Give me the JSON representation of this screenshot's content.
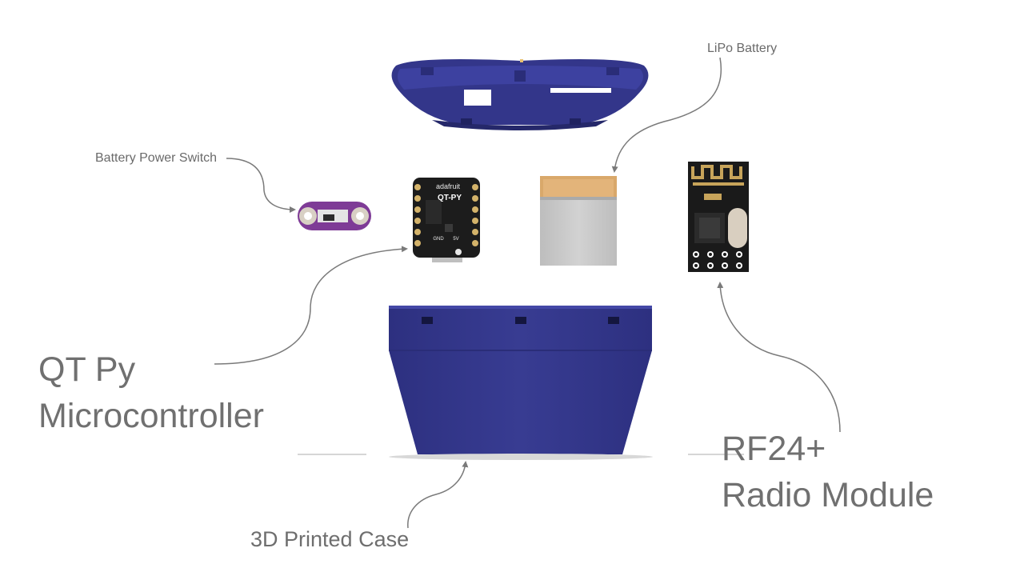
{
  "diagram": {
    "title": "",
    "labels": {
      "lipo_battery": "LiPo Battery",
      "battery_power_switch": "Battery Power Switch",
      "qt_py_line1": "QT Py",
      "qt_py_line2": "Microcontroller",
      "rf24_line1": "RF24+",
      "rf24_line2": "Radio Module",
      "printed_case": "3D Printed Case"
    },
    "board_silkscreen": {
      "brand": "adafruit",
      "name": "QT-PY",
      "pins_left": "GND",
      "pins_right": "5V"
    },
    "colors": {
      "case_blue": "#34378a",
      "case_blue_dark": "#26296e",
      "switch_purple": "#7e3b96",
      "pcb_black": "#1c1c1c",
      "battery_gray": "#c9c9c9",
      "battery_tan": "#d9a86b",
      "arrow_gray": "#7a7a7a",
      "text_gray": "#6f6f6f"
    }
  }
}
